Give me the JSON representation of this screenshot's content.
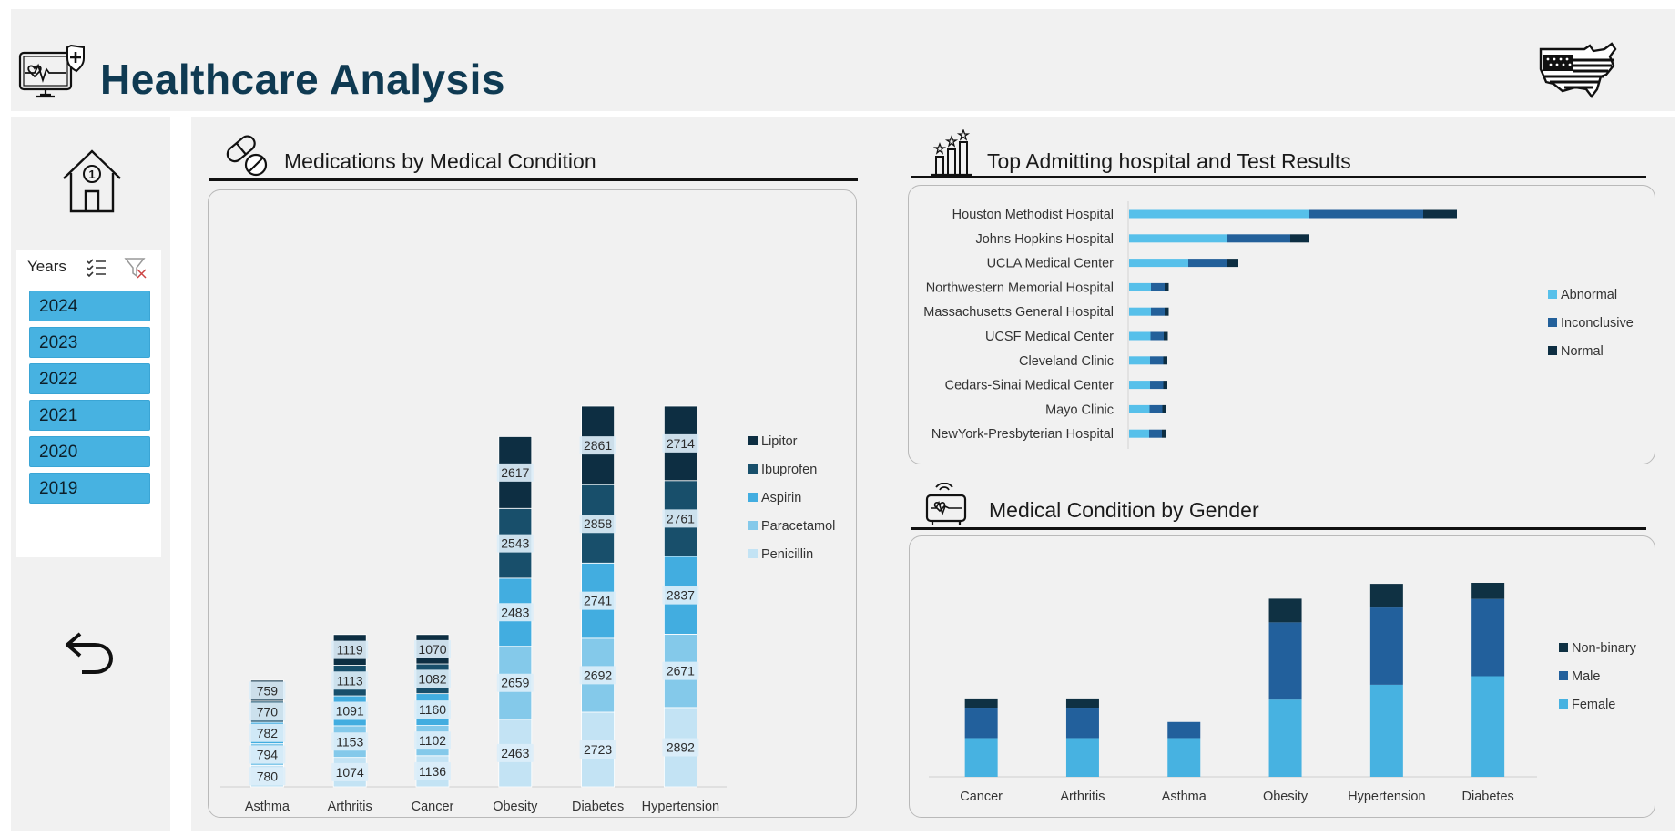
{
  "header": {
    "title": "Healthcare Analysis"
  },
  "slicer": {
    "title": "Years",
    "items": [
      "2024",
      "2023",
      "2022",
      "2021",
      "2020",
      "2019"
    ]
  },
  "colors": {
    "navy": "#0f3a52",
    "med": [
      "#c3e3f4",
      "#84c9ea",
      "#42ade0",
      "#184f6b",
      "#0d2e42"
    ],
    "test": [
      "#57c0ea",
      "#23609a",
      "#0d2e42"
    ],
    "gender": [
      "#47b2e1",
      "#22609c",
      "#0f3143"
    ]
  },
  "icons": {
    "health_monitor": "health-monitor-icon",
    "usa_flag_map": "usa-flag-map-icon",
    "home": "home-icon",
    "multiselect": "multi-select-icon",
    "clear_filter": "clear-filter-icon",
    "back": "back-arrow-icon",
    "pills": "pills-icon",
    "ranking": "ranking-chart-icon",
    "heart_monitor": "heart-monitor-icon"
  },
  "sections": {
    "medications": "Medications by Medical Condition",
    "hospitals": "Top Admitting hospital and Test Results",
    "gender": "Medical Condition by Gender"
  },
  "chart_data": [
    {
      "type": "bar",
      "stacked": true,
      "title": "Medications by Medical Condition",
      "categories": [
        "Asthma",
        "Arthritis",
        "Cancer",
        "Obesity",
        "Diabetes",
        "Hypertension"
      ],
      "series": [
        {
          "name": "Penicillin",
          "values": [
            780,
            1074,
            1136,
            2463,
            2723,
            2892
          ]
        },
        {
          "name": "Paracetamol",
          "values": [
            794,
            1153,
            1102,
            2659,
            2692,
            2671
          ]
        },
        {
          "name": "Aspirin",
          "values": [
            782,
            1091,
            1160,
            2483,
            2741,
            2837
          ]
        },
        {
          "name": "Ibuprofen",
          "values": [
            770,
            1113,
            1082,
            2543,
            2858,
            2761
          ]
        },
        {
          "name": "Lipitor",
          "values": [
            759,
            1119,
            1070,
            2617,
            2861,
            2714
          ]
        }
      ],
      "legend": "right"
    },
    {
      "type": "bar",
      "orientation": "horizontal",
      "stacked": true,
      "title": "Top Admitting hospital and Test Results",
      "categories": [
        "Houston Methodist Hospital",
        "Johns Hopkins Hospital",
        "UCLA Medical Center",
        "Northwestern Memorial Hospital",
        "Massachusetts General Hospital",
        "UCSF Medical Center",
        "Cleveland Clinic",
        "Cedars-Sinai Medical Center",
        "Mayo Clinic",
        "NewYork-Presbyterian Hospital"
      ],
      "series": [
        {
          "name": "Abnormal",
          "values": [
            1980,
            1080,
            650,
            240,
            240,
            235,
            230,
            230,
            225,
            220
          ]
        },
        {
          "name": "Inconclusive",
          "values": [
            1250,
            690,
            420,
            150,
            150,
            145,
            145,
            145,
            140,
            140
          ]
        },
        {
          "name": "Normal",
          "values": [
            370,
            210,
            130,
            45,
            45,
            45,
            45,
            45,
            45,
            45
          ]
        }
      ],
      "legend": "right"
    },
    {
      "type": "bar",
      "stacked": true,
      "title": "Medical Condition by Gender",
      "categories": [
        "Cancer",
        "Arthritis",
        "Asthma",
        "Obesity",
        "Hypertension",
        "Diabetes"
      ],
      "series": [
        {
          "name": "Female",
          "values": [
            1540,
            1540,
            1540,
            3070,
            3660,
            4000
          ]
        },
        {
          "name": "Male",
          "values": [
            1210,
            1210,
            640,
            3070,
            3070,
            3070
          ]
        },
        {
          "name": "Non-binary",
          "values": [
            330,
            330,
            0,
            940,
            940,
            640
          ]
        }
      ],
      "legend": "right"
    }
  ]
}
